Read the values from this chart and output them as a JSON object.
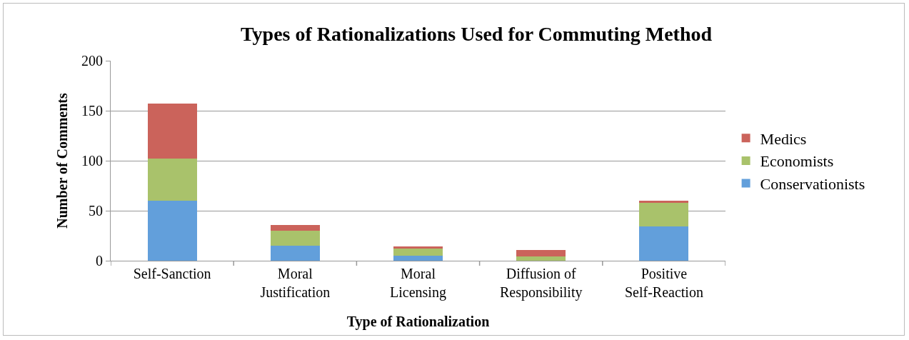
{
  "chart_data": {
    "type": "bar",
    "title": "Types of Rationalizations Used for Commuting Method",
    "xlabel": "Type of Rationalization",
    "ylabel": "Number of Comments",
    "categories": [
      "Self-Sanction",
      "Moral Justification",
      "Moral Licensing",
      "Diffusion of Responsibility",
      "Positive Self-Reaction"
    ],
    "series": [
      {
        "name": "Conservationists",
        "color": "#629fdb",
        "values": [
          60,
          15,
          5,
          0,
          34
        ]
      },
      {
        "name": "Economists",
        "color": "#a9c26b",
        "values": [
          42,
          15,
          7,
          4,
          24
        ]
      },
      {
        "name": "Medics",
        "color": "#cb635b",
        "values": [
          55,
          6,
          2,
          7,
          2
        ]
      }
    ],
    "stacked": true,
    "ylim": [
      0,
      200
    ],
    "yticks": [
      0,
      50,
      100,
      150,
      200
    ],
    "grid": "y",
    "legend": "right"
  }
}
